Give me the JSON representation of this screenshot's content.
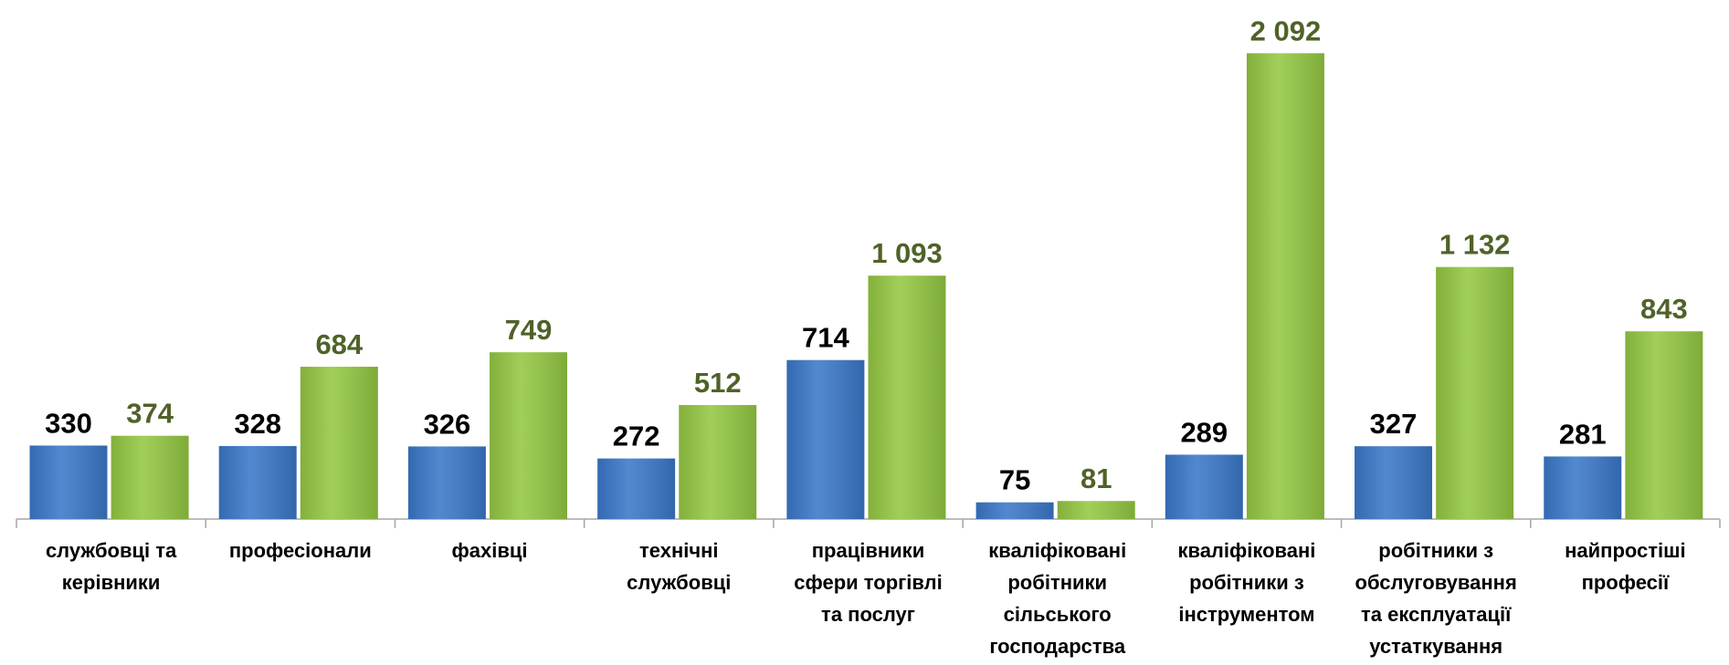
{
  "chart_data": {
    "type": "bar",
    "categories": [
      "службовці та керівники",
      "професіонали",
      "фахівці",
      "технічні службовці",
      "працівники сфери торгівлі та послуг",
      "кваліфіковані робітники сільського господарства",
      "кваліфіковані робітники з інструментом",
      "робітники з обслуговування та експлуатації устаткування",
      "найпростіші професії"
    ],
    "series": [
      {
        "color": "#3b78c9",
        "label_color": "#000000",
        "values": [
          330,
          328,
          326,
          272,
          714,
          75,
          289,
          327,
          281
        ]
      },
      {
        "color": "#94c842",
        "label_color": "#4f6228",
        "values": [
          374,
          684,
          749,
          512,
          1093,
          81,
          2092,
          1132,
          843
        ],
        "value_labels": [
          "374",
          "684",
          "749",
          "512",
          "1 093",
          "81",
          "2 092",
          "1 132",
          "843"
        ]
      }
    ],
    "ylim": [
      0,
      2200
    ]
  }
}
